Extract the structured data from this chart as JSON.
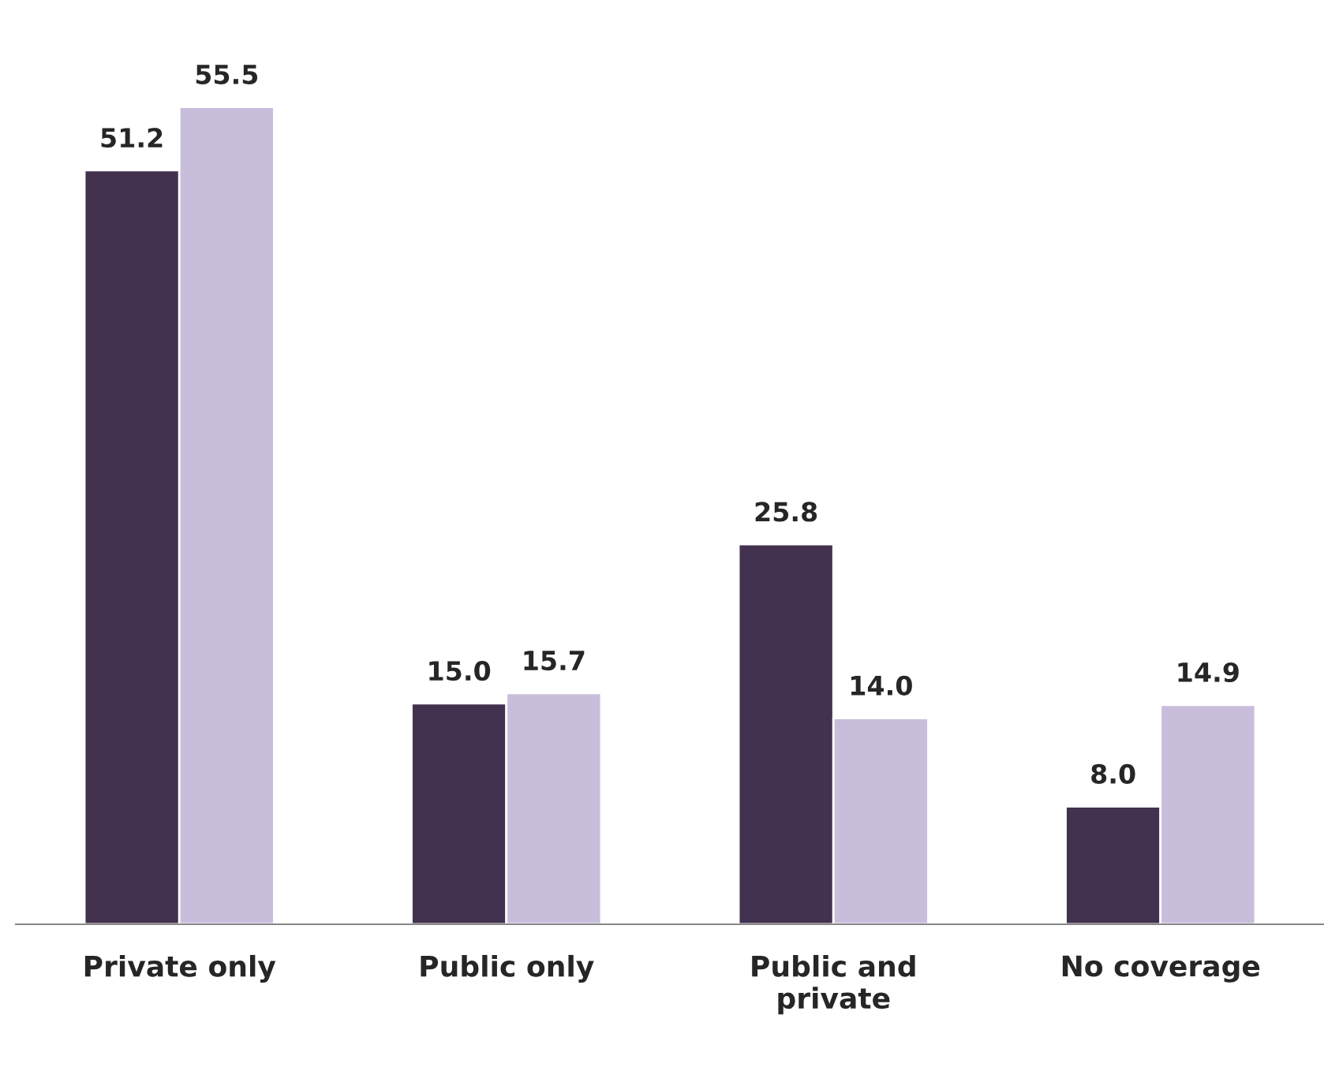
{
  "chart_data": {
    "type": "bar",
    "categories": [
      "Private only",
      "Public only",
      "Public and\nprivate",
      "No coverage"
    ],
    "series": [
      {
        "color": "#433150",
        "values": [
          51.2,
          15.0,
          25.8,
          8.0
        ],
        "value_labels": [
          "51.2",
          "15.0",
          "25.8",
          "8.0"
        ]
      },
      {
        "color": "#c8bedb",
        "values": [
          55.5,
          15.7,
          14.0,
          14.9
        ],
        "value_labels": [
          "55.5",
          "15.7",
          "14.0",
          "14.9"
        ]
      }
    ],
    "tick_labels": "x"
  }
}
